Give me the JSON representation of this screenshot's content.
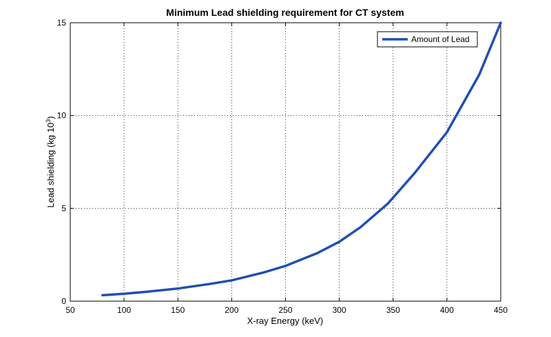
{
  "chart_data": {
    "type": "line",
    "title": "Minimum Lead shielding requirement for CT system",
    "xlabel": "X-ray Energy (keV)",
    "ylabel": "Lead shielding (kg 10",
    "ylabel_sup": "3",
    "ylabel_close": ")",
    "xlim": [
      50,
      450
    ],
    "ylim": [
      0,
      15
    ],
    "xticks": [
      50,
      100,
      150,
      200,
      250,
      300,
      350,
      400,
      450
    ],
    "yticks": [
      0,
      5,
      10,
      15
    ],
    "grid": true,
    "legend_position": "top-right",
    "series": [
      {
        "name": "Amount of Lead",
        "color": "#1f4fb0",
        "x": [
          80,
          100,
          120,
          150,
          180,
          200,
          230,
          250,
          280,
          300,
          320,
          345,
          370,
          400,
          430,
          450
        ],
        "y": [
          0.32,
          0.4,
          0.5,
          0.68,
          0.93,
          1.12,
          1.55,
          1.9,
          2.6,
          3.2,
          4.0,
          5.25,
          6.9,
          9.1,
          12.2,
          15.0
        ]
      }
    ]
  }
}
